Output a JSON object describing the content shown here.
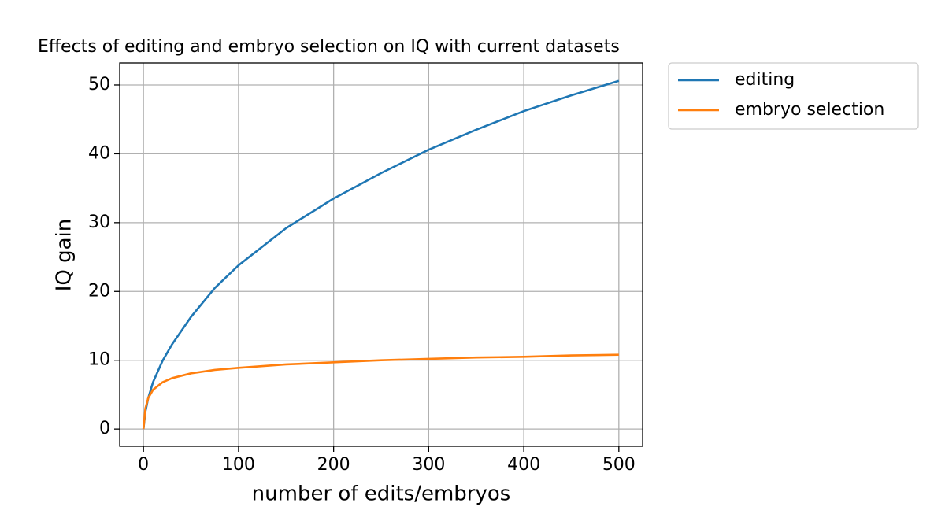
{
  "chart_data": {
    "type": "line",
    "title": "Effects of editing and embryo selection on IQ with current datasets",
    "x_label": "number of edits/embryos",
    "y_label": "IQ gain",
    "x": [
      0,
      2,
      5,
      10,
      20,
      30,
      50,
      75,
      100,
      150,
      200,
      250,
      300,
      350,
      400,
      450,
      500
    ],
    "series": [
      {
        "name": "editing",
        "color": "#1f77b4",
        "values": [
          0,
          2.5,
          4.5,
          6.8,
          9.9,
          12.3,
          16.3,
          20.5,
          23.8,
          29.2,
          33.5,
          37.2,
          40.6,
          43.5,
          46.2,
          48.5,
          50.6
        ]
      },
      {
        "name": "embryo selection",
        "color": "#ff7f0e",
        "values": [
          0,
          3.0,
          4.5,
          5.7,
          6.8,
          7.4,
          8.1,
          8.6,
          8.9,
          9.4,
          9.7,
          10.0,
          10.2,
          10.4,
          10.5,
          10.7,
          10.8
        ]
      }
    ],
    "xlim": [
      -25,
      525
    ],
    "ylim": [
      -2.5,
      53.2
    ],
    "xticks": [
      0,
      100,
      200,
      300,
      400,
      500
    ],
    "yticks": [
      0,
      10,
      20,
      30,
      40,
      50
    ],
    "grid": true,
    "legend": "outside-upper-right"
  }
}
